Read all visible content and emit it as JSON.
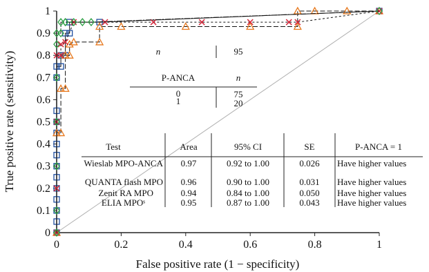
{
  "chart_data": {
    "type": "line",
    "xlabel": "False positive rate (1 − specificity)",
    "ylabel": "True positive rate (sensitivity)",
    "xlim": [
      0,
      1
    ],
    "ylim": [
      0,
      1
    ],
    "x_ticks": [
      "0",
      "0.2",
      "0.4",
      "0.6",
      "0.8",
      "1"
    ],
    "y_ticks": [
      "0",
      "0.1",
      "0.2",
      "0.3",
      "0.4",
      "0.5",
      "0.6",
      "0.7",
      "0.8",
      "0.9",
      "1"
    ],
    "grid": false,
    "reference_line": {
      "x": [
        0,
        1
      ],
      "y": [
        0,
        1
      ],
      "color": "#b0b0b0"
    },
    "series": [
      {
        "name": "Wieslab MPO-ANCA",
        "color": "#1f4e9e",
        "marker": "square",
        "x": [
          0,
          0,
          0,
          0,
          0,
          0,
          0,
          0,
          0,
          0,
          0,
          0,
          0,
          0,
          0.013,
          0.013,
          0.027,
          0.027,
          0.04,
          0.04,
          0.133,
          1
        ],
        "y": [
          0,
          0.05,
          0.1,
          0.15,
          0.2,
          0.25,
          0.3,
          0.35,
          0.4,
          0.45,
          0.5,
          0.55,
          0.7,
          0.75,
          0.75,
          0.8,
          0.8,
          0.9,
          0.9,
          0.95,
          0.95,
          1
        ]
      },
      {
        "name": "QUANTA flash MPO",
        "color": "#e8791e",
        "marker": "triangle",
        "x": [
          0,
          0,
          0.013,
          0.013,
          0.027,
          0.027,
          0.04,
          0.04,
          0.053,
          0.133,
          0.133,
          0.2,
          0.4,
          0.6,
          0.747,
          0.747,
          0.8,
          0.9,
          1
        ],
        "y": [
          0,
          0.45,
          0.45,
          0.65,
          0.65,
          0.8,
          0.8,
          0.85,
          0.86,
          0.86,
          0.93,
          0.93,
          0.93,
          0.93,
          0.93,
          1,
          1,
          1,
          1
        ]
      },
      {
        "name": "Zenit RA MPO",
        "color": "#d6283c",
        "marker": "x",
        "x": [
          0,
          0,
          0,
          0,
          0.013,
          0.013,
          0.027,
          0.053,
          0.15,
          0.3,
          0.45,
          0.6,
          0.72,
          0.747,
          1
        ],
        "y": [
          0,
          0.2,
          0.5,
          0.8,
          0.8,
          0.85,
          0.86,
          0.95,
          0.95,
          0.95,
          0.95,
          0.95,
          0.95,
          0.95,
          1
        ]
      },
      {
        "name": "ELIA MPOˢ",
        "color": "#2ea045",
        "marker": "diamond",
        "x": [
          0,
          0,
          0,
          0,
          0,
          0,
          0,
          0.013,
          0.013,
          0.027,
          0.027,
          0.053,
          0.08,
          0.107,
          1
        ],
        "y": [
          0,
          0.1,
          0.3,
          0.5,
          0.7,
          0.85,
          0.9,
          0.9,
          0.95,
          0.95,
          0.95,
          0.95,
          0.95,
          0.95,
          1
        ]
      }
    ],
    "summary_table": {
      "rows": [
        {
          "label": "n",
          "value": "95"
        }
      ],
      "columns": [
        "P-ANCA",
        "n"
      ],
      "values": [
        [
          "0",
          "75"
        ],
        [
          "1",
          "20"
        ]
      ]
    },
    "results_table": {
      "columns": [
        "Test",
        "Area",
        "95% CI",
        "SE",
        "P-ANCA = 1"
      ],
      "rows": [
        [
          "Wieslab MPO-ANCA",
          "0.97",
          "0.92 to 1.00",
          "0.026",
          "Have higher values"
        ],
        [
          "QUANTA flash MPO",
          "0.96",
          "0.90 to 1.00",
          "0.031",
          "Have higher values"
        ],
        [
          "Zenit RA MPO",
          "0.94",
          "0.84 to 1.00",
          "0.050",
          "Have higher values"
        ],
        [
          "ELIA MPOˢ",
          "0.95",
          "0.87 to 1.00",
          "0.043",
          "Have higher values"
        ]
      ]
    }
  }
}
